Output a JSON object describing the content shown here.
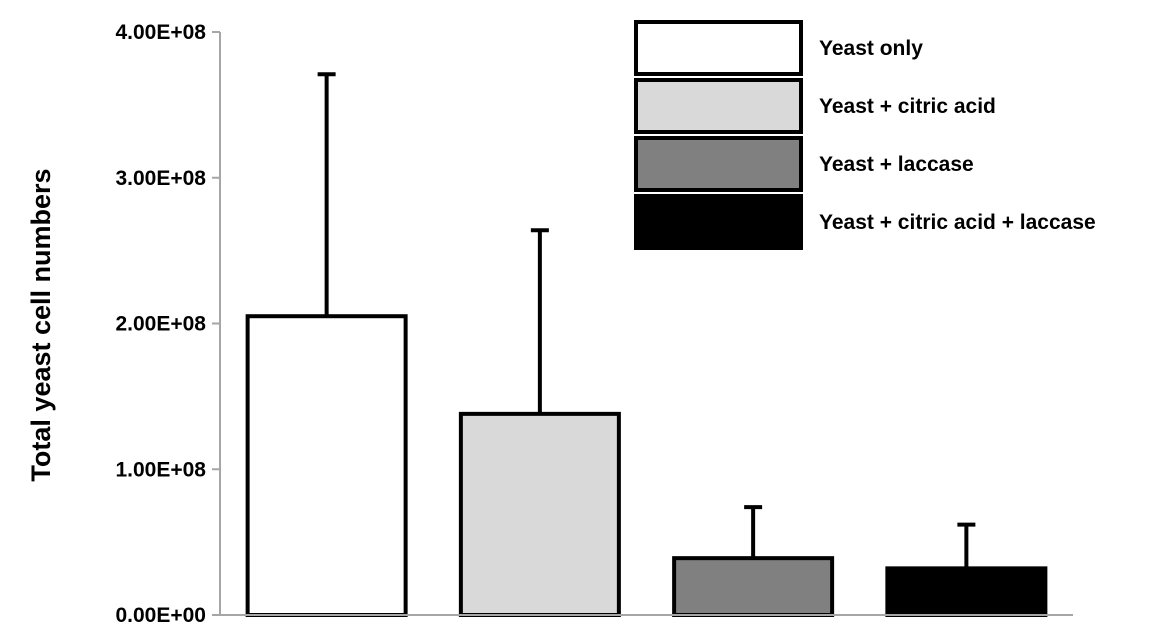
{
  "chart_data": {
    "type": "bar",
    "ylabel": "Total yeast cell numbers",
    "ylim": [
      0,
      400000000
    ],
    "y_ticks": [
      {
        "value": 0,
        "label": "0.00E+00"
      },
      {
        "value": 100000000,
        "label": "1.00E+08"
      },
      {
        "value": 200000000,
        "label": "2.00E+08"
      },
      {
        "value": 300000000,
        "label": "3.00E+08"
      },
      {
        "value": 400000000,
        "label": "4.00E+08"
      }
    ],
    "grid": false,
    "legend_position": "top-right",
    "series": [
      {
        "name": "Yeast only",
        "value": 205000000,
        "error": 166000000,
        "color": "#ffffff"
      },
      {
        "name": "Yeast + citric acid",
        "value": 138000000,
        "error": 126000000,
        "color": "#d9d9d9"
      },
      {
        "name": "Yeast + laccase",
        "value": 39000000,
        "error": 35000000,
        "color": "#808080"
      },
      {
        "name": "Yeast + citric acid + laccase",
        "value": 32000000,
        "error": 30000000,
        "color": "#000000"
      }
    ]
  }
}
